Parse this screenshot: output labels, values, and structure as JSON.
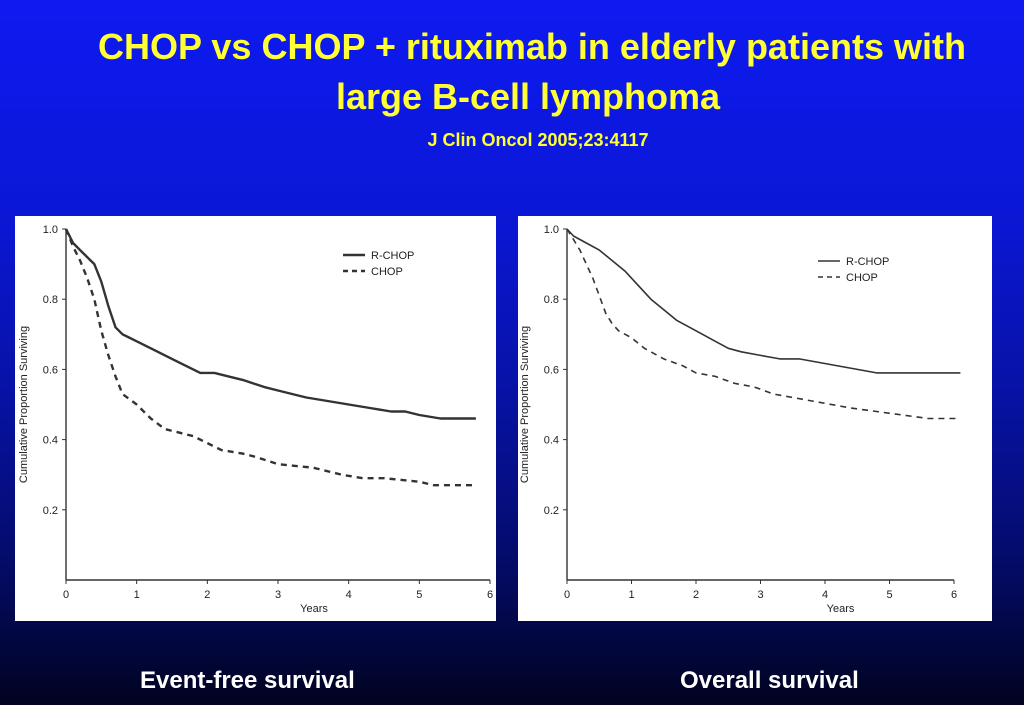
{
  "slide": {
    "title_line1": "CHOP vs CHOP + rituximab in elderly patients with",
    "title_line2": "large B-cell lymphoma",
    "citation": "J Clin Oncol 2005;23:4117",
    "title_color": "#ffff33",
    "caption_color": "#ffffff",
    "background_top": "#0e1af0",
    "background_bottom": "#010320"
  },
  "chart_data": [
    {
      "type": "line",
      "caption": "Event-free survival",
      "xlabel": "Years",
      "ylabel": "Cumulative Proportion Surviving",
      "xlim": [
        0,
        6
      ],
      "ylim": [
        0,
        1.0
      ],
      "x_ticks": [
        "0",
        "1",
        "2",
        "3",
        "4",
        "5",
        "6"
      ],
      "y_ticks": [
        "0.2",
        "0.4",
        "0.6",
        "0.8",
        "1.0"
      ],
      "grid": false,
      "legend_position": "top-right",
      "series": [
        {
          "name": "R-CHOP",
          "style": "solid",
          "points": [
            [
              0,
              1.0
            ],
            [
              0.1,
              0.96
            ],
            [
              0.2,
              0.94
            ],
            [
              0.3,
              0.92
            ],
            [
              0.4,
              0.9
            ],
            [
              0.5,
              0.85
            ],
            [
              0.6,
              0.78
            ],
            [
              0.7,
              0.72
            ],
            [
              0.8,
              0.7
            ],
            [
              1.0,
              0.68
            ],
            [
              1.2,
              0.66
            ],
            [
              1.5,
              0.63
            ],
            [
              1.7,
              0.61
            ],
            [
              1.9,
              0.59
            ],
            [
              2.1,
              0.59
            ],
            [
              2.3,
              0.58
            ],
            [
              2.5,
              0.57
            ],
            [
              2.8,
              0.55
            ],
            [
              3.0,
              0.54
            ],
            [
              3.2,
              0.53
            ],
            [
              3.4,
              0.52
            ],
            [
              3.7,
              0.51
            ],
            [
              4.0,
              0.5
            ],
            [
              4.3,
              0.49
            ],
            [
              4.6,
              0.48
            ],
            [
              4.8,
              0.48
            ],
            [
              5.0,
              0.47
            ],
            [
              5.3,
              0.46
            ],
            [
              5.8,
              0.46
            ]
          ]
        },
        {
          "name": "CHOP",
          "style": "dashed",
          "points": [
            [
              0,
              1.0
            ],
            [
              0.1,
              0.95
            ],
            [
              0.2,
              0.91
            ],
            [
              0.3,
              0.86
            ],
            [
              0.4,
              0.8
            ],
            [
              0.5,
              0.71
            ],
            [
              0.6,
              0.64
            ],
            [
              0.7,
              0.58
            ],
            [
              0.8,
              0.53
            ],
            [
              1.0,
              0.5
            ],
            [
              1.2,
              0.46
            ],
            [
              1.4,
              0.43
            ],
            [
              1.6,
              0.42
            ],
            [
              1.8,
              0.41
            ],
            [
              2.0,
              0.39
            ],
            [
              2.2,
              0.37
            ],
            [
              2.5,
              0.36
            ],
            [
              2.7,
              0.35
            ],
            [
              3.0,
              0.33
            ],
            [
              3.5,
              0.32
            ],
            [
              3.9,
              0.3
            ],
            [
              4.2,
              0.29
            ],
            [
              4.5,
              0.29
            ],
            [
              5.0,
              0.28
            ],
            [
              5.2,
              0.27
            ],
            [
              5.8,
              0.27
            ]
          ]
        }
      ]
    },
    {
      "type": "line",
      "caption": "Overall survival",
      "xlabel": "Years",
      "ylabel": "Cumulative Proportion Surviving",
      "xlim": [
        0,
        6
      ],
      "ylim": [
        0,
        1.0
      ],
      "x_ticks": [
        "0",
        "1",
        "2",
        "3",
        "4",
        "5",
        "6"
      ],
      "y_ticks": [
        "0.2",
        "0.4",
        "0.6",
        "0.8",
        "1.0"
      ],
      "grid": false,
      "legend_position": "top-right",
      "series": [
        {
          "name": "R-CHOP",
          "style": "solid",
          "points": [
            [
              0,
              1.0
            ],
            [
              0.1,
              0.98
            ],
            [
              0.3,
              0.96
            ],
            [
              0.5,
              0.94
            ],
            [
              0.7,
              0.91
            ],
            [
              0.9,
              0.88
            ],
            [
              1.1,
              0.84
            ],
            [
              1.3,
              0.8
            ],
            [
              1.5,
              0.77
            ],
            [
              1.7,
              0.74
            ],
            [
              1.9,
              0.72
            ],
            [
              2.1,
              0.7
            ],
            [
              2.3,
              0.68
            ],
            [
              2.5,
              0.66
            ],
            [
              2.7,
              0.65
            ],
            [
              3.0,
              0.64
            ],
            [
              3.3,
              0.63
            ],
            [
              3.6,
              0.63
            ],
            [
              3.9,
              0.62
            ],
            [
              4.2,
              0.61
            ],
            [
              4.5,
              0.6
            ],
            [
              4.8,
              0.59
            ],
            [
              5.2,
              0.59
            ],
            [
              5.6,
              0.59
            ],
            [
              6.1,
              0.59
            ]
          ]
        },
        {
          "name": "CHOP",
          "style": "dashed",
          "points": [
            [
              0,
              1.0
            ],
            [
              0.1,
              0.97
            ],
            [
              0.2,
              0.94
            ],
            [
              0.3,
              0.9
            ],
            [
              0.4,
              0.86
            ],
            [
              0.5,
              0.81
            ],
            [
              0.6,
              0.76
            ],
            [
              0.7,
              0.73
            ],
            [
              0.8,
              0.71
            ],
            [
              1.0,
              0.69
            ],
            [
              1.2,
              0.66
            ],
            [
              1.5,
              0.63
            ],
            [
              1.8,
              0.61
            ],
            [
              2.0,
              0.59
            ],
            [
              2.3,
              0.58
            ],
            [
              2.6,
              0.56
            ],
            [
              2.9,
              0.55
            ],
            [
              3.2,
              0.53
            ],
            [
              3.5,
              0.52
            ],
            [
              3.8,
              0.51
            ],
            [
              4.1,
              0.5
            ],
            [
              4.4,
              0.49
            ],
            [
              4.8,
              0.48
            ],
            [
              5.2,
              0.47
            ],
            [
              5.6,
              0.46
            ],
            [
              6.1,
              0.46
            ]
          ]
        }
      ]
    }
  ]
}
